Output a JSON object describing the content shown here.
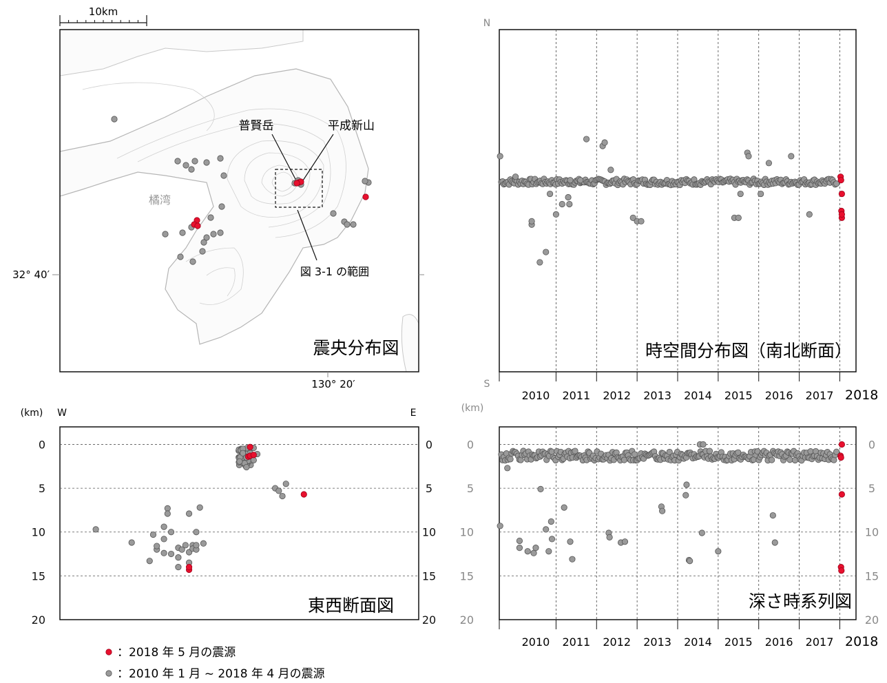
{
  "colors": {
    "recent": "#e8102e",
    "past": "#9a9a9a",
    "past_stroke": "#555555",
    "frame": "#111111"
  },
  "map": {
    "scale_label": "10km",
    "lat_label": "32° 40′",
    "lon_label": "130° 20′",
    "labels": {
      "fugendake": "普賢岳",
      "heisei": "平成新山",
      "bay": "橘湾",
      "range": "図 3-1 の範囲"
    },
    "title": "震央分布図"
  },
  "ns_panel": {
    "title": "時空間分布図（南北断面）",
    "north": "N",
    "south": "S"
  },
  "ew_panel": {
    "title": "東西断面図",
    "unit": "(km)",
    "west": "W",
    "east": "E"
  },
  "depth_panel": {
    "title": "深さ時系列図",
    "unit": "(km)"
  },
  "legend": {
    "recent": "：2018 年 5 月の震源",
    "past": "：2010 年 1 月 ~ 2018 年 4 月の震源"
  },
  "chart_data": [
    {
      "type": "scatter",
      "title": "時空間分布図（南北断面）",
      "x_ticks": [
        "2010",
        "2011",
        "2012",
        "2013",
        "2014",
        "2015",
        "2016",
        "2017",
        "2018"
      ],
      "xlim": [
        2009.6,
        2018.4
      ],
      "series": [
        {
          "name": "2010 年 1 月 ~ 2018 年 4 月の震源",
          "points": [
            [
              2009.62,
              0.63
            ],
            [
              2010.0,
              0.57
            ],
            [
              2010.4,
              0.43
            ],
            [
              2010.4,
              0.44
            ],
            [
              2010.6,
              0.32
            ],
            [
              2010.75,
              0.35
            ],
            [
              2010.85,
              0.52
            ],
            [
              2011.0,
              0.46
            ],
            [
              2011.15,
              0.49
            ],
            [
              2011.3,
              0.51
            ],
            [
              2011.33,
              0.49
            ],
            [
              2011.35,
              0.56
            ],
            [
              2011.6,
              0.56
            ],
            [
              2011.75,
              0.68
            ],
            [
              2012.15,
              0.66
            ],
            [
              2012.2,
              0.67
            ],
            [
              2012.35,
              0.59
            ],
            [
              2012.9,
              0.45
            ],
            [
              2013.0,
              0.44
            ],
            [
              2013.1,
              0.44
            ],
            [
              2015.4,
              0.45
            ],
            [
              2015.5,
              0.45
            ],
            [
              2015.55,
              0.52
            ],
            [
              2015.72,
              0.64
            ],
            [
              2015.75,
              0.63
            ],
            [
              2016.05,
              0.52
            ],
            [
              2016.25,
              0.61
            ],
            [
              2016.8,
              0.63
            ],
            [
              2017.25,
              0.46
            ]
          ]
        },
        {
          "name": "2018 年 5 月の震源",
          "points": [
            [
              2018.02,
              0.57
            ],
            [
              2018.03,
              0.56
            ],
            [
              2018.05,
              0.52
            ],
            [
              2018.04,
              0.47
            ],
            [
              2018.05,
              0.45
            ],
            [
              2018.05,
              0.46
            ]
          ]
        }
      ]
    },
    {
      "type": "scatter",
      "title": "東西断面図",
      "ylabel": "(km)",
      "y_ticks": [
        "0",
        "5",
        "10",
        "15",
        "20"
      ],
      "ylim": [
        20,
        -2
      ],
      "series": [
        {
          "name": "2010 年 1 月 ~ 2018 年 4 月の震源",
          "points": [
            [
              0.1,
              9.7
            ],
            [
              0.2,
              11.2
            ],
            [
              0.25,
              13.3
            ],
            [
              0.26,
              10.3
            ],
            [
              0.27,
              12.0
            ],
            [
              0.27,
              11.6
            ],
            [
              0.29,
              12.4
            ],
            [
              0.29,
              10.8
            ],
            [
              0.29,
              9.4
            ],
            [
              0.3,
              7.3
            ],
            [
              0.3,
              7.9
            ],
            [
              0.31,
              12.5
            ],
            [
              0.31,
              10.0
            ],
            [
              0.33,
              14.0
            ],
            [
              0.33,
              11.8
            ],
            [
              0.33,
              12.9
            ],
            [
              0.34,
              12.0
            ],
            [
              0.35,
              11.5
            ],
            [
              0.36,
              7.9
            ],
            [
              0.36,
              13.5
            ],
            [
              0.36,
              12.3
            ],
            [
              0.37,
              11.5
            ],
            [
              0.37,
              11.9
            ],
            [
              0.38,
              10.0
            ],
            [
              0.38,
              12.0
            ],
            [
              0.38,
              11.5
            ],
            [
              0.39,
              7.2
            ],
            [
              0.4,
              11.3
            ],
            [
              0.51,
              0.5
            ],
            [
              0.51,
              1.0
            ],
            [
              0.52,
              1.5
            ],
            [
              0.52,
              2.6
            ],
            [
              0.53,
              1.0
            ],
            [
              0.54,
              1.8
            ],
            [
              0.54,
              0.4
            ],
            [
              0.55,
              1.1
            ],
            [
              0.6,
              5.0
            ],
            [
              0.61,
              5.3
            ],
            [
              0.62,
              5.9
            ],
            [
              0.63,
              4.5
            ]
          ]
        },
        {
          "name": "2018 年 5 月の震源",
          "points": [
            [
              0.36,
              14.3
            ],
            [
              0.36,
              14.0
            ],
            [
              0.525,
              1.4
            ],
            [
              0.53,
              1.3
            ],
            [
              0.54,
              1.2
            ],
            [
              0.53,
              0.3
            ],
            [
              0.68,
              5.7
            ]
          ]
        }
      ]
    },
    {
      "type": "scatter",
      "title": "深さ時系列図",
      "ylabel": "(km)",
      "x_ticks": [
        "2010",
        "2011",
        "2012",
        "2013",
        "2014",
        "2015",
        "2016",
        "2017",
        "2018"
      ],
      "y_ticks": [
        "0",
        "5",
        "10",
        "15",
        "20"
      ],
      "xlim": [
        2009.6,
        2018.4
      ],
      "ylim": [
        20,
        -2
      ],
      "series": [
        {
          "name": "2010 年 1 月 ~ 2018 年 4 月の震源",
          "points": [
            [
              2009.62,
              9.3
            ],
            [
              2009.8,
              2.7
            ],
            [
              2010.1,
              11.0
            ],
            [
              2010.1,
              11.8
            ],
            [
              2010.3,
              12.2
            ],
            [
              2010.45,
              12.4
            ],
            [
              2010.5,
              11.8
            ],
            [
              2010.62,
              5.1
            ],
            [
              2010.75,
              9.7
            ],
            [
              2010.82,
              12.2
            ],
            [
              2010.88,
              8.8
            ],
            [
              2010.9,
              10.8
            ],
            [
              2011.2,
              7.2
            ],
            [
              2011.35,
              11.1
            ],
            [
              2011.4,
              13.1
            ],
            [
              2012.3,
              10.1
            ],
            [
              2012.32,
              10.6
            ],
            [
              2012.6,
              11.2
            ],
            [
              2012.7,
              11.1
            ],
            [
              2013.6,
              7.1
            ],
            [
              2013.62,
              7.6
            ],
            [
              2014.2,
              5.8
            ],
            [
              2014.22,
              4.6
            ],
            [
              2014.28,
              13.2
            ],
            [
              2014.3,
              13.3
            ],
            [
              2014.6,
              10.1
            ],
            [
              2014.55,
              0.0
            ],
            [
              2014.63,
              0.0
            ],
            [
              2015.0,
              12.2
            ],
            [
              2016.35,
              8.1
            ],
            [
              2016.4,
              11.2
            ]
          ]
        },
        {
          "name": "2018 年 5 月の震源",
          "points": [
            [
              2018.02,
              1.3
            ],
            [
              2018.03,
              1.5
            ],
            [
              2018.05,
              0.0
            ],
            [
              2018.05,
              5.7
            ],
            [
              2018.03,
              14.0
            ],
            [
              2018.04,
              14.4
            ]
          ]
        }
      ]
    }
  ]
}
